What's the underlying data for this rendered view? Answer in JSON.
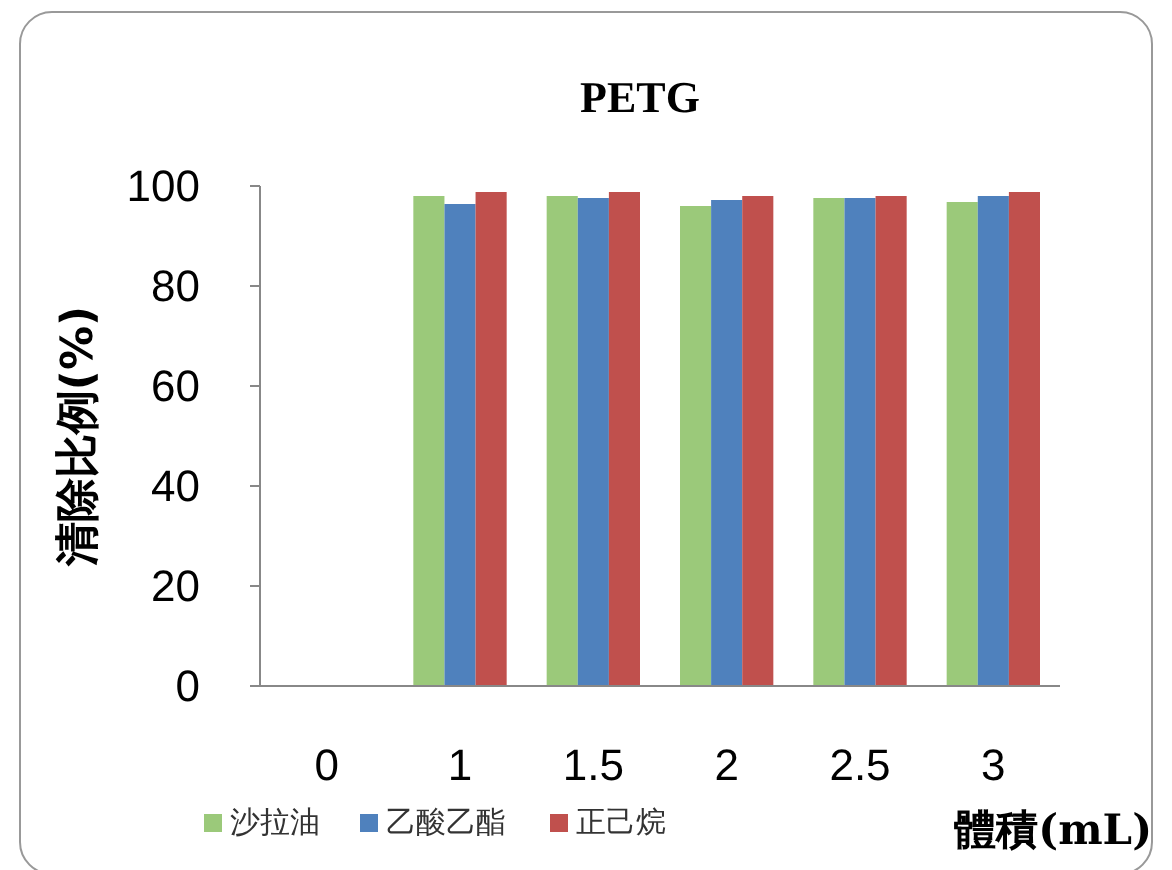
{
  "chart_data": {
    "type": "bar",
    "title": "PETG",
    "xlabel": "體積(mL)",
    "ylabel": "清除比例(%)",
    "categories": [
      "0",
      "1",
      "1.5",
      "2",
      "2.5",
      "3"
    ],
    "series": [
      {
        "name": "沙拉油",
        "color": "#9bc97a",
        "values": [
          0,
          98,
          98,
          96,
          97.6,
          96.8
        ]
      },
      {
        "name": "乙酸乙酯",
        "color": "#4f81bd",
        "values": [
          0,
          96.4,
          97.6,
          97.2,
          97.6,
          98
        ]
      },
      {
        "name": "正己烷",
        "color": "#c0504d",
        "values": [
          0,
          98.8,
          98.8,
          98,
          98,
          98.8
        ]
      }
    ],
    "ylim": [
      0,
      100
    ],
    "yticks": [
      0,
      20,
      40,
      60,
      80,
      100
    ],
    "grid": false,
    "legend": "bottom"
  }
}
